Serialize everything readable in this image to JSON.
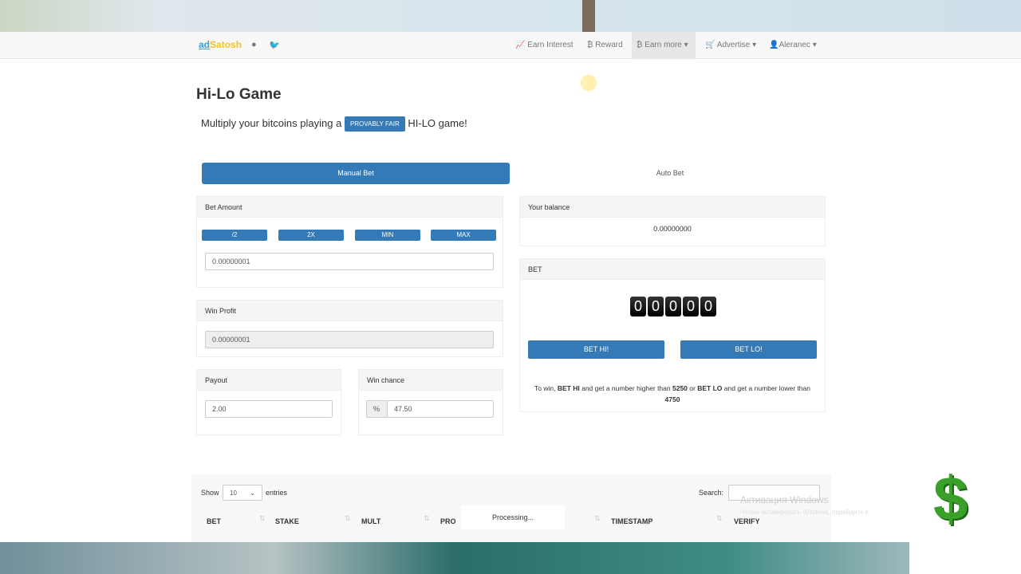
{
  "nav": {
    "brand_a": "ad",
    "brand_b": "Satosh",
    "items": [
      "Earn Interest",
      "Reward",
      "Earn more ▾",
      "Advertise ▾",
      "Aleranec ▾"
    ]
  },
  "page": {
    "title": "Hi-Lo Game",
    "subtitle_pre": "Multiply your bitcoins playing a",
    "badge": "PROVABLY FAIR",
    "subtitle_post": "HI-LO game!"
  },
  "tabs": {
    "manual": "Manual Bet",
    "auto": "Auto Bet"
  },
  "bet_amount": {
    "label": "Bet Amount",
    "buttons": [
      "/2",
      "2X",
      "MIN",
      "MAX"
    ],
    "value": "0.00000001"
  },
  "win_profit": {
    "label": "Win Profit",
    "value": "0.00000001"
  },
  "payout": {
    "label": "Payout",
    "value": "2.00"
  },
  "win_chance": {
    "label": "Win chance",
    "addon": "%",
    "value": "47.50"
  },
  "balance": {
    "label": "Your balance",
    "value": "0.00000000"
  },
  "bet": {
    "label": "BET",
    "digits": [
      "0",
      "0",
      "0",
      "0",
      "0"
    ],
    "hi": "BET HI!",
    "lo": "BET LO!",
    "rule": {
      "a": "To win,",
      "b": "BET HI",
      "c": "and get a number higher than",
      "d": "5250",
      "e": "or",
      "f": "BET LO",
      "g": "and get a number lower than",
      "h": "4750"
    }
  },
  "table": {
    "show": "Show",
    "entries_value": "10",
    "entries": "entries",
    "search": "Search:",
    "columns": [
      "BET",
      "STAKE",
      "MULT",
      "PRO",
      "TIMESTAMP",
      "VERIFY"
    ],
    "processing": "Processing..."
  },
  "overlay": {
    "win_title": "Активация Windows",
    "win_sub": "Чтобы активировать Windows, перейдите в"
  }
}
